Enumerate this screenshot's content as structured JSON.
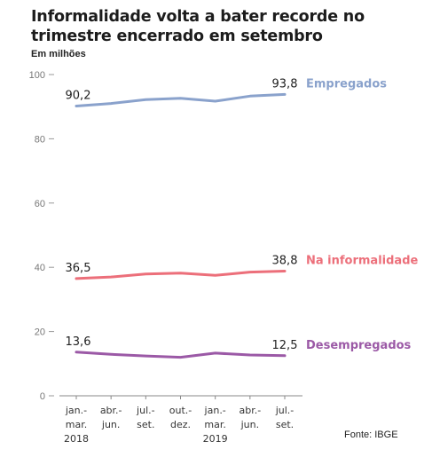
{
  "header": {
    "title": "Informalidade volta a bater recorde no trimestre encerrado em setembro",
    "subtitle": "Em milhões"
  },
  "footer": {
    "source": "Fonte: IBGE"
  },
  "chart_data": {
    "type": "line",
    "title": "Informalidade volta a bater recorde no trimestre encerrado em setembro",
    "ylabel": "Em milhões",
    "xlabel": "",
    "ylim": [
      0,
      100
    ],
    "yticks": [
      0,
      20,
      40,
      60,
      80,
      100
    ],
    "grid": false,
    "legend": "right, inline labels at line ends",
    "categories": [
      [
        "jan.-",
        "mar.",
        "2018"
      ],
      [
        "abr.-",
        "jun."
      ],
      [
        "jul.-",
        "set."
      ],
      [
        "out.-",
        "dez."
      ],
      [
        "jan.-",
        "mar.",
        "2019"
      ],
      [
        "abr.-",
        "jun."
      ],
      [
        "jul.-",
        "set."
      ]
    ],
    "series": [
      {
        "name": "Empregados",
        "color": "#8aa2cc",
        "values": [
          90.2,
          91.0,
          92.2,
          92.6,
          91.7,
          93.3,
          93.8
        ],
        "labels": {
          "first": "90,2",
          "last": "93,8"
        }
      },
      {
        "name": "Na informalidade",
        "color": "#ec6f7a",
        "values": [
          36.5,
          37.0,
          37.9,
          38.2,
          37.5,
          38.5,
          38.8
        ],
        "labels": {
          "first": "36,5",
          "last": "38,8"
        }
      },
      {
        "name": "Desempregados",
        "color": "#9b59a6",
        "values": [
          13.6,
          12.9,
          12.4,
          12.0,
          13.3,
          12.7,
          12.5
        ],
        "labels": {
          "first": "13,6",
          "last": "12,5"
        }
      }
    ]
  }
}
